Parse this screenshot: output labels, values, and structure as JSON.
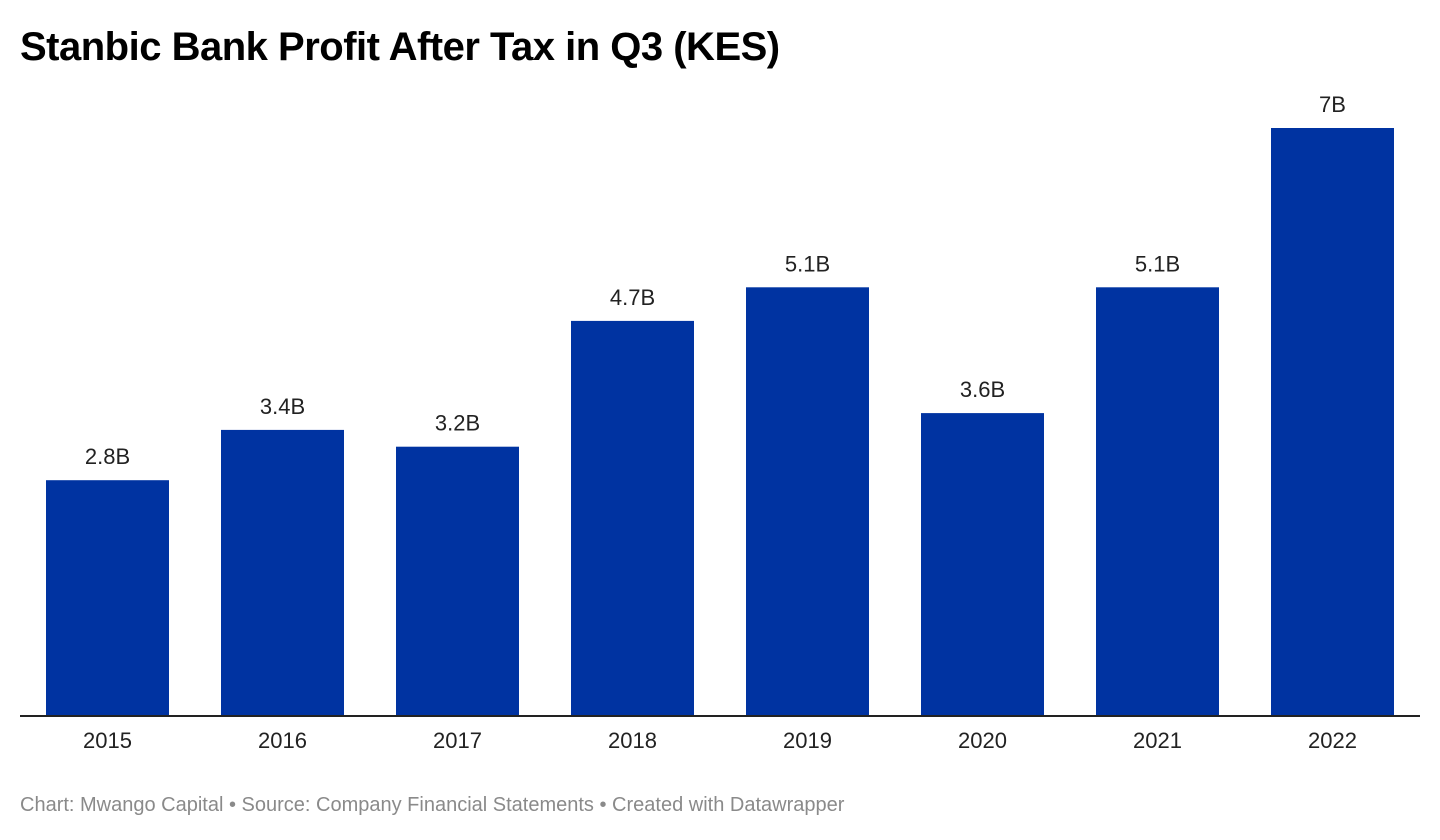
{
  "chart_data": {
    "type": "bar",
    "title": "Stanbic Bank Profit After Tax in Q3 (KES)",
    "categories": [
      "2015",
      "2016",
      "2017",
      "2018",
      "2019",
      "2020",
      "2021",
      "2022"
    ],
    "values": [
      2.8,
      3.4,
      3.2,
      4.7,
      5.1,
      3.6,
      5.1,
      7.0
    ],
    "data_labels": [
      "2.8B",
      "3.4B",
      "3.2B",
      "4.7B",
      "5.1B",
      "3.6B",
      "5.1B",
      "7B"
    ],
    "ylim": [
      0,
      7.0
    ],
    "grid": false,
    "bar_color": "#0033a1",
    "xlabel": "",
    "ylabel": ""
  },
  "footer": {
    "text": "Chart: Mwango Capital • Source: Company Financial Statements • Created with Datawrapper"
  }
}
